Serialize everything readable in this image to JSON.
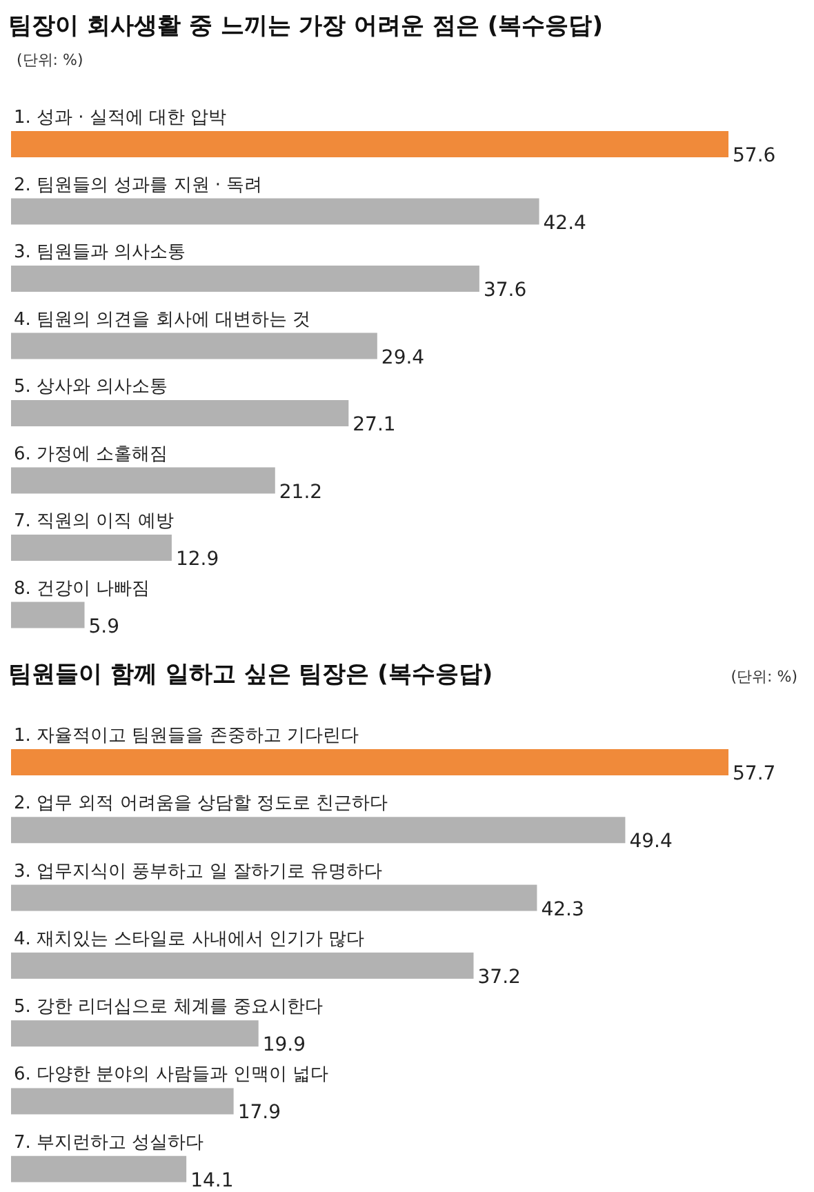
{
  "chart_data": [
    {
      "type": "bar",
      "orientation": "horizontal",
      "title": "팀장이 회사생활 중 느끼는 가장 어려운 점은 (복수응답)",
      "annotations": [
        "(단위: %)"
      ],
      "categories": [
        "1. 성과 · 실적에 대한 압박",
        "2. 팀원들의 성과를 지원 · 독려",
        "3. 팀원들과 의사소통",
        "4. 팀원의 의견을 회사에 대변하는 것",
        "5. 상사와 의사소통",
        "6. 가정에 소홀해짐",
        "7. 직원의 이직 예방",
        "8. 건강이 나빠짐"
      ],
      "values": [
        57.6,
        42.4,
        37.6,
        29.4,
        27.1,
        21.2,
        12.9,
        5.9
      ],
      "colors": [
        "#f08a3a",
        "#b2b2b2",
        "#b2b2b2",
        "#b2b2b2",
        "#b2b2b2",
        "#b2b2b2",
        "#b2b2b2",
        "#b2b2b2"
      ],
      "data_labels": true
    },
    {
      "type": "bar",
      "orientation": "horizontal",
      "title": "팀원들이 함께 일하고 싶은 팀장은 (복수응답)",
      "annotations": [
        "(단위: %)"
      ],
      "categories": [
        "1. 자율적이고 팀원들을 존중하고 기다린다",
        "2. 업무 외적 어려움을 상담할 정도로 친근하다",
        "3. 업무지식이 풍부하고 일 잘하기로 유명하다",
        "4. 재치있는 스타일로 사내에서 인기가 많다",
        "5. 강한 리더십으로 체계를 중요시한다",
        "6. 다양한 분야의 사람들과 인맥이 넓다",
        "7. 부지런하고 성실하다"
      ],
      "values": [
        57.7,
        49.4,
        42.3,
        37.2,
        19.9,
        17.9,
        14.1
      ],
      "colors": [
        "#f08a3a",
        "#b2b2b2",
        "#b2b2b2",
        "#b2b2b2",
        "#b2b2b2",
        "#b2b2b2",
        "#b2b2b2"
      ],
      "data_labels": true
    }
  ]
}
